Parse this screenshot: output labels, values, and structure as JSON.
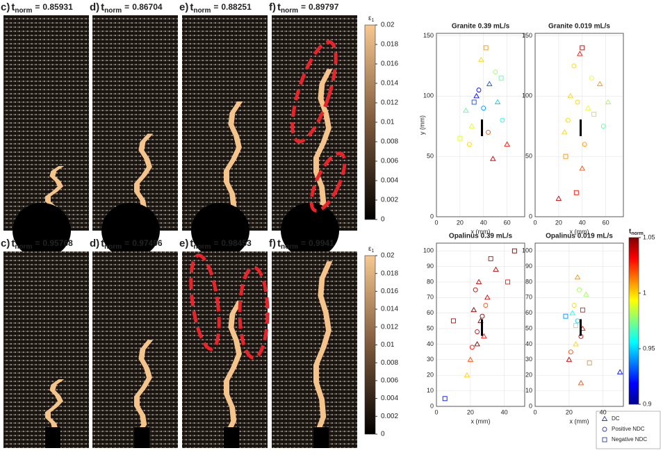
{
  "panels": {
    "t_symbol": "t",
    "t_sub": "norm",
    "equals": "=",
    "top": [
      {
        "label": "c)",
        "time": 0.85931
      },
      {
        "label": "d)",
        "time": 0.86704
      },
      {
        "label": "e)",
        "time": 0.88251
      },
      {
        "label": "f)",
        "time": 0.89797
      }
    ],
    "bottom": [
      {
        "label": "c)",
        "time": 0.95768
      },
      {
        "label": "d)",
        "time": 0.97496
      },
      {
        "label": "e)",
        "time": 0.98453
      },
      {
        "label": "f)",
        "time": 0.9941
      }
    ]
  },
  "strain_colorbar": {
    "symbol": "ε",
    "sub": "1",
    "ticks": [
      0,
      0.002,
      0.004,
      0.006,
      0.008,
      0.01,
      0.012,
      0.014,
      0.016,
      0.018,
      0.02
    ],
    "lim": [
      0,
      0.02
    ]
  },
  "time_colorbar": {
    "symbol": "t",
    "sub": "norm",
    "lim": [
      0.9,
      1.05
    ],
    "ticks": [
      0.9,
      0.95,
      1,
      1.05
    ]
  },
  "chart_data": [
    {
      "type": "scatter",
      "title": "Granite 0.39 mL/s",
      "xlabel": "x (mm)",
      "ylabel": "y (mm)",
      "xlim": [
        0,
        75
      ],
      "ylim": [
        0,
        152
      ],
      "xticks": [
        0,
        20,
        40,
        60
      ],
      "yticks": [
        0,
        50,
        100,
        150
      ],
      "grid": true,
      "series": [
        {
          "name": "DC",
          "x": [
            45,
            30,
            52,
            38,
            60,
            25,
            48,
            34
          ],
          "values": [
            110,
            75,
            95,
            130,
            60,
            88,
            48,
            100
          ],
          "t": [
            0.93,
            0.99,
            0.95,
            1.0,
            1.03,
            0.97,
            1.04,
            0.92
          ]
        },
        {
          "name": "Positive NDC",
          "x": [
            40,
            50,
            28,
            56,
            36,
            44
          ],
          "values": [
            90,
            120,
            60,
            80,
            105,
            70
          ],
          "t": [
            0.94,
            0.98,
            1.0,
            0.96,
            0.92,
            1.02
          ]
        },
        {
          "name": "Negative NDC",
          "x": [
            42,
            32,
            55,
            20
          ],
          "values": [
            140,
            95,
            115,
            65
          ],
          "t": [
            1.01,
            0.93,
            0.97,
            0.99
          ]
        }
      ]
    },
    {
      "type": "scatter",
      "title": "Granite 0.019 mL/s",
      "xlabel": "x (mm)",
      "xlim": [
        0,
        75
      ],
      "ylim": [
        0,
        152
      ],
      "xticks": [
        0,
        20,
        40,
        60
      ],
      "yticks": [
        0,
        50,
        100,
        150
      ],
      "grid": true,
      "series": [
        {
          "name": "DC",
          "x": [
            38,
            30,
            45,
            25,
            55,
            40,
            20,
            62
          ],
          "values": [
            135,
            100,
            90,
            70,
            110,
            40,
            15,
            95
          ],
          "t": [
            1.03,
            1.0,
            0.99,
            1.0,
            1.01,
            1.02,
            1.04,
            0.98
          ]
        },
        {
          "name": "Positive NDC",
          "x": [
            36,
            48,
            28,
            42,
            58,
            33
          ],
          "values": [
            95,
            115,
            80,
            60,
            75,
            125
          ],
          "t": [
            1.0,
            0.99,
            1.0,
            1.01,
            0.97,
            1.0
          ]
        },
        {
          "name": "Negative NDC",
          "x": [
            40,
            26,
            50,
            35
          ],
          "values": [
            140,
            50,
            85,
            20
          ],
          "t": [
            1.04,
            1.01,
            1.0,
            1.03
          ]
        }
      ]
    },
    {
      "type": "scatter",
      "title": "Opalinus 0.39 mL/s",
      "xlabel": "x (mm)",
      "xlim": [
        0,
        52
      ],
      "ylim": [
        0,
        105
      ],
      "xticks": [
        0,
        20,
        40
      ],
      "yticks": [
        0,
        10,
        20,
        30,
        40,
        50,
        60,
        70,
        80,
        90,
        100
      ],
      "grid": true,
      "series": [
        {
          "name": "DC",
          "x": [
            25,
            22,
            28,
            30,
            20,
            26,
            35,
            18,
            24
          ],
          "values": [
            80,
            62,
            45,
            70,
            30,
            55,
            88,
            20,
            40
          ],
          "t": [
            1.04,
            1.05,
            1.03,
            1.04,
            1.02,
            1.05,
            1.04,
            1.0,
            1.05
          ]
        },
        {
          "name": "Positive NDC",
          "x": [
            24,
            27,
            21,
            29,
            23
          ],
          "values": [
            48,
            58,
            38,
            65,
            75
          ],
          "t": [
            1.04,
            1.05,
            1.03,
            1.02,
            1.04
          ]
        },
        {
          "name": "Negative NDC",
          "x": [
            10,
            42,
            46,
            5,
            32
          ],
          "values": [
            55,
            80,
            100,
            5,
            95
          ],
          "t": [
            1.04,
            1.03,
            1.05,
            0.92,
            1.04
          ]
        }
      ]
    },
    {
      "type": "scatter",
      "title": "Opalinus 0.019 mL/s",
      "xlabel": "x (mm)",
      "xlim": [
        0,
        52
      ],
      "ylim": [
        0,
        105
      ],
      "xticks": [
        0,
        20,
        40
      ],
      "yticks": [
        0,
        10,
        20,
        30,
        40,
        50,
        60,
        70,
        80,
        90,
        100
      ],
      "grid": true,
      "series": [
        {
          "name": "DC",
          "x": [
            25,
            22,
            28,
            24,
            30,
            20,
            27,
            50
          ],
          "values": [
            83,
            60,
            50,
            40,
            72,
            30,
            15,
            22
          ],
          "t": [
            1.01,
            0.96,
            1.03,
            1.0,
            0.98,
            1.04,
            1.02,
            0.92
          ]
        },
        {
          "name": "Positive NDC",
          "x": [
            25,
            23,
            27,
            26,
            21
          ],
          "values": [
            55,
            65,
            45,
            75,
            35
          ],
          "t": [
            0.95,
            1.0,
            1.04,
            0.98,
            1.02
          ]
        },
        {
          "name": "Negative NDC",
          "x": [
            24,
            28,
            18,
            32
          ],
          "values": [
            52,
            62,
            58,
            28
          ],
          "t": [
            0.97,
            1.03,
            0.94,
            1.01
          ]
        }
      ]
    }
  ]
}
